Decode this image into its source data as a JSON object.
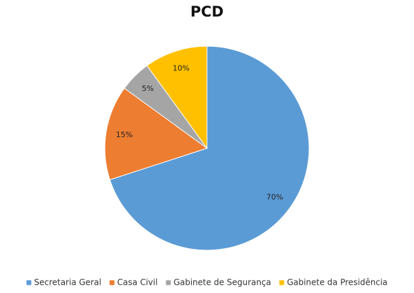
{
  "chart_data": {
    "type": "pie",
    "title": "PCD",
    "categories": [
      "Secretaria Geral",
      "Casa Civil",
      "Gabinete de Segurança",
      "Gabinete da Presidência"
    ],
    "values": [
      70,
      15,
      5,
      10
    ],
    "value_labels": [
      "70%",
      "15%",
      "5%",
      "10%"
    ],
    "colors": [
      "#5B9BD5",
      "#ED7D31",
      "#A5A5A5",
      "#FFC000"
    ],
    "start_angle_deg": 0,
    "direction": "clockwise",
    "legend_position": "bottom"
  }
}
